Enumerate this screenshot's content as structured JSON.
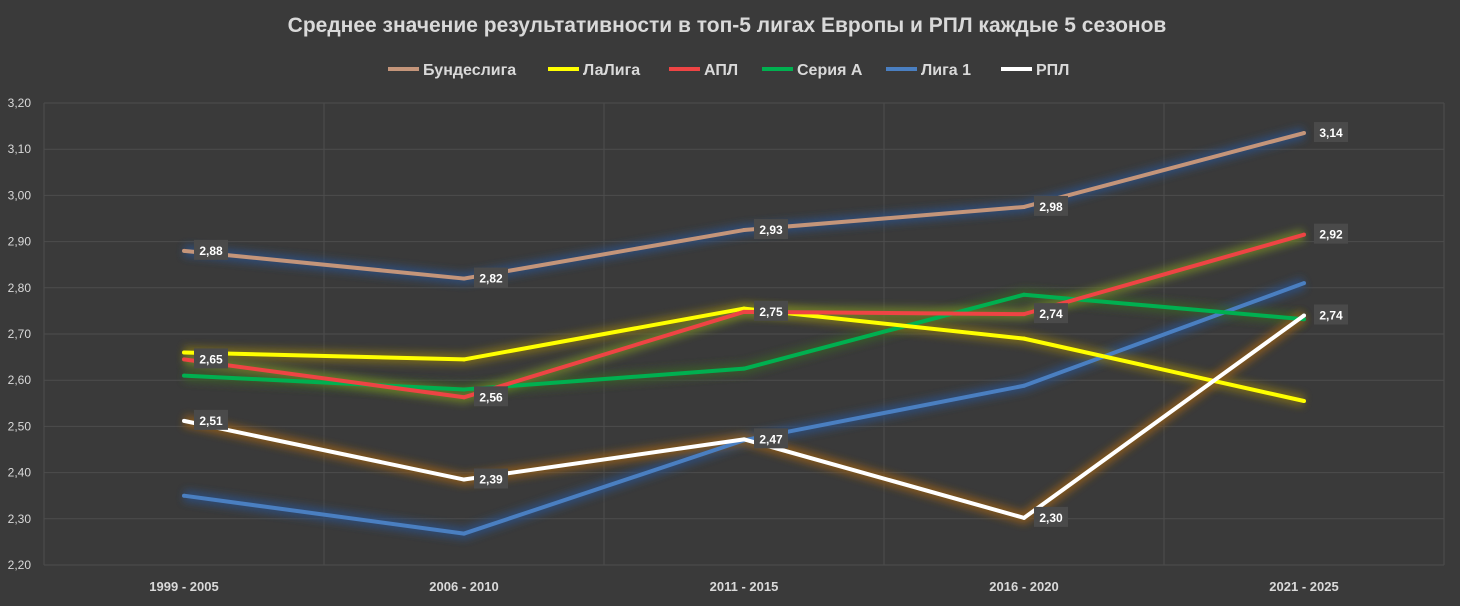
{
  "chart_data": {
    "type": "line",
    "title": "Среднее значение результативности в топ-5 лигах Европы и РПЛ каждые 5 сезонов",
    "categories": [
      "1999 - 2005",
      "2006 - 2010",
      "2011 - 2015",
      "2016 - 2020",
      "2021 - 2025"
    ],
    "ylim": [
      2.2,
      3.2
    ],
    "yticks": [
      "2,20",
      "2,30",
      "2,40",
      "2,50",
      "2,60",
      "2,70",
      "2,80",
      "2,90",
      "3,00",
      "3,10",
      "3,20"
    ],
    "grid": true,
    "legend_position": "top",
    "series": [
      {
        "name": "Бундеслига",
        "color": "#c4957a",
        "glow": "#2e4d7a",
        "values": [
          2.88,
          2.82,
          2.925,
          2.975,
          3.135
        ],
        "labels": [
          "2,88",
          "2,82",
          "2,93",
          "2,98",
          "3,14"
        ]
      },
      {
        "name": "ЛаЛига",
        "color": "#ffff00",
        "glow": "#7a6a1a",
        "values": [
          2.66,
          2.645,
          2.755,
          2.69,
          2.555
        ],
        "labels": [
          "",
          "",
          "",
          "",
          ""
        ]
      },
      {
        "name": "АПЛ",
        "color": "#ee4444",
        "glow": "#6a7a2a",
        "values": [
          2.645,
          2.563,
          2.748,
          2.743,
          2.915
        ],
        "labels": [
          "2,65",
          "2,56",
          "2,75",
          "2,74",
          "2,92"
        ]
      },
      {
        "name": "Серия А",
        "color": "#00b050",
        "glow": "#3a5a2a",
        "values": [
          2.61,
          2.58,
          2.625,
          2.785,
          2.732
        ],
        "labels": [
          "",
          "",
          "",
          "",
          ""
        ]
      },
      {
        "name": "Лига 1",
        "color": "#4a7fc1",
        "glow": "#2e4d7a",
        "values": [
          2.35,
          2.268,
          2.47,
          2.588,
          2.81
        ],
        "labels": [
          "",
          "",
          "",
          "",
          ""
        ]
      },
      {
        "name": "РПЛ",
        "color": "#ffffff",
        "glow": "#8a5a1a",
        "values": [
          2.512,
          2.385,
          2.472,
          2.302,
          2.74
        ],
        "labels": [
          "2,51",
          "2,39",
          "2,47",
          "2,30",
          "2,74"
        ]
      }
    ]
  }
}
